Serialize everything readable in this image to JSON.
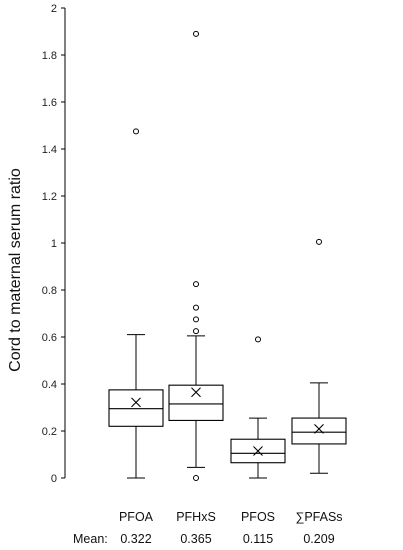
{
  "chart_data": {
    "type": "boxplot",
    "ylabel": "Cord to maternal serum ratio",
    "ylim": [
      0,
      2
    ],
    "yticks": [
      0,
      0.2,
      0.4,
      0.6,
      0.8,
      1,
      1.2,
      1.4,
      1.6,
      1.8,
      2
    ],
    "ytick_labels": [
      "0",
      "0.2",
      "0.4",
      "0.6",
      "0.8",
      "1",
      "1.2",
      "1.4",
      "1.6",
      "1.8",
      "2"
    ],
    "grid": false,
    "mean_row_label": "Mean:",
    "categories": [
      "PFOA",
      "PFHxS",
      "PFOS",
      "∑PFASs"
    ],
    "mean_labels": [
      "0.322",
      "0.365",
      "0.115",
      "0.209"
    ],
    "boxes": [
      {
        "name": "PFOA",
        "min": 0.0,
        "q1": 0.22,
        "median": 0.295,
        "q3": 0.375,
        "max": 0.61,
        "mean": 0.322,
        "outliers": [
          1.475
        ]
      },
      {
        "name": "PFHxS",
        "min": 0.045,
        "q1": 0.245,
        "median": 0.315,
        "q3": 0.395,
        "max": 0.605,
        "mean": 0.365,
        "outliers": [
          0.0,
          0.625,
          0.675,
          0.725,
          0.825,
          1.89
        ]
      },
      {
        "name": "PFOS",
        "min": 0.0,
        "q1": 0.065,
        "median": 0.105,
        "q3": 0.165,
        "max": 0.255,
        "mean": 0.115,
        "outliers": [
          0.59
        ]
      },
      {
        "name": "∑PFASs",
        "min": 0.02,
        "q1": 0.145,
        "median": 0.195,
        "q3": 0.255,
        "max": 0.405,
        "mean": 0.209,
        "outliers": [
          1.005
        ]
      }
    ]
  }
}
